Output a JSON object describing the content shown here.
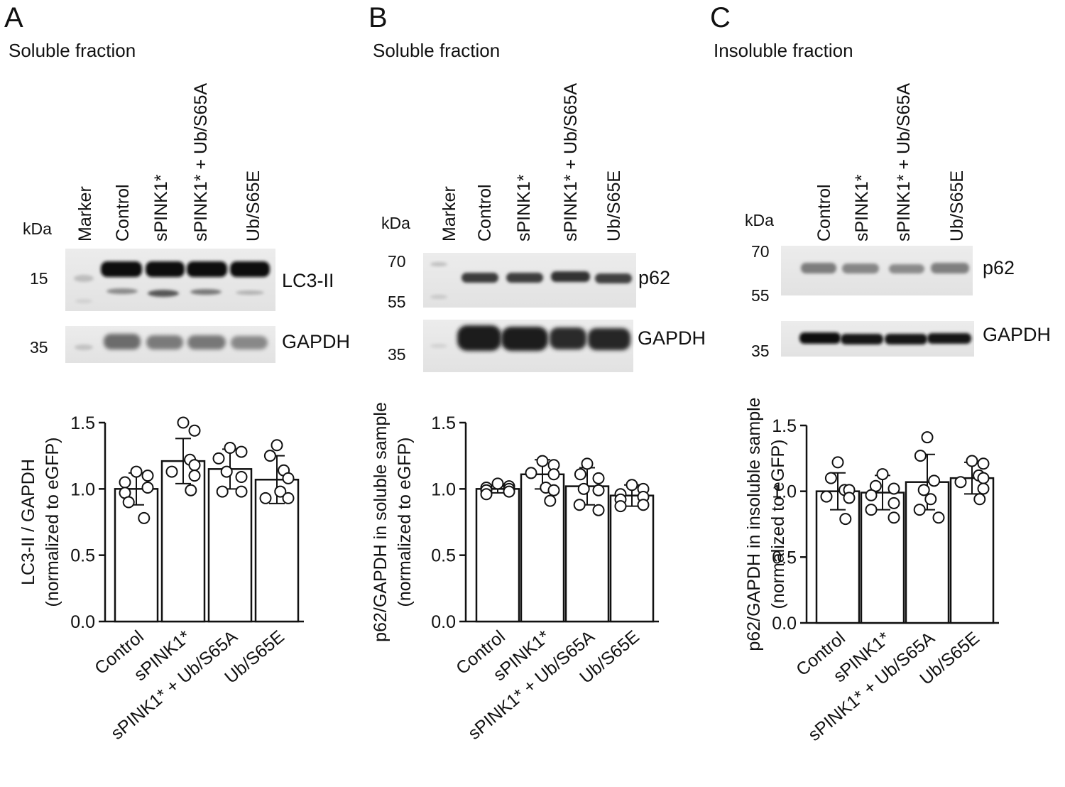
{
  "panels": [
    {
      "letter": "A",
      "fraction": "Soluble fraction",
      "kda": "kDa",
      "lanes": [
        "Marker",
        "Control",
        "sPINK1*",
        "sPINK1* + Ub/S65A",
        "Ub/S65E"
      ],
      "blots": [
        {
          "label": "LC3-II",
          "markers": [
            "15"
          ]
        },
        {
          "label": "GAPDH",
          "markers": [
            "35"
          ]
        }
      ]
    },
    {
      "letter": "B",
      "fraction": "Soluble fraction",
      "kda": "kDa",
      "lanes": [
        "Marker",
        "Control",
        "sPINK1*",
        "sPINK1* + Ub/S65A",
        "Ub/S65E"
      ],
      "blots": [
        {
          "label": "p62",
          "markers": [
            "70",
            "55"
          ]
        },
        {
          "label": "GAPDH",
          "markers": [
            "35"
          ]
        }
      ]
    },
    {
      "letter": "C",
      "fraction": "Insoluble fraction",
      "kda": "kDa",
      "lanes": [
        "Control",
        "sPINK1*",
        "sPINK1* + Ub/S65A",
        "Ub/S65E"
      ],
      "blots": [
        {
          "label": "p62",
          "markers": [
            "70",
            "55"
          ]
        },
        {
          "label": "GAPDH",
          "markers": [
            "35"
          ]
        }
      ]
    }
  ],
  "chart_data": [
    {
      "type": "bar",
      "categories": [
        "Control",
        "sPINK1*",
        "sPINK1* + Ub/S65A",
        "Ub/S65E"
      ],
      "values": [
        1.0,
        1.21,
        1.15,
        1.07
      ],
      "error": [
        0.12,
        0.17,
        0.15,
        0.18
      ],
      "points": [
        [
          1.13,
          1.1,
          1.05,
          1.01,
          0.97,
          0.9,
          0.78
        ],
        [
          1.5,
          1.44,
          1.22,
          1.18,
          1.13,
          1.1,
          0.99
        ],
        [
          1.31,
          1.28,
          1.23,
          1.13,
          1.09,
          0.98,
          0.98
        ],
        [
          1.33,
          1.25,
          1.14,
          1.08,
          0.98,
          0.93,
          0.93
        ]
      ],
      "ylabel_lines": [
        "LC3-II / GAPDH",
        "(normalized to eGFP)"
      ],
      "ylim": [
        0,
        1.5
      ],
      "yticks": [
        "0.0",
        "0.5",
        "1.0",
        "1.5"
      ]
    },
    {
      "type": "bar",
      "categories": [
        "Control",
        "sPINK1*",
        "sPINK1* + Ub/S65A",
        "Ub/S65E"
      ],
      "values": [
        1.0,
        1.11,
        1.02,
        0.95
      ],
      "error": [
        0.03,
        0.11,
        0.14,
        0.08
      ],
      "points": [
        [
          1.04,
          1.02,
          1.01,
          1.0,
          0.99,
          0.98,
          0.96
        ],
        [
          1.21,
          1.18,
          1.12,
          1.11,
          1.01,
          0.99,
          0.91
        ],
        [
          1.19,
          1.11,
          1.08,
          1.0,
          0.99,
          0.88,
          0.84
        ],
        [
          1.03,
          1.0,
          0.96,
          0.94,
          0.92,
          0.88,
          0.87
        ]
      ],
      "ylabel_lines": [
        "p62/GAPDH in soluble sample",
        "(normalized to eGFP)"
      ],
      "ylim": [
        0,
        1.5
      ],
      "yticks": [
        "0.0",
        "0.5",
        "1.0",
        "1.5"
      ]
    },
    {
      "type": "bar",
      "categories": [
        "Control",
        "sPINK1*",
        "sPINK1* + Ub/S65A",
        "Ub/S65E"
      ],
      "values": [
        1.0,
        0.99,
        1.07,
        1.1
      ],
      "error": [
        0.14,
        0.13,
        0.21,
        0.12
      ],
      "points": [
        [
          1.22,
          1.1,
          1.01,
          1.01,
          0.96,
          0.95,
          0.79
        ],
        [
          1.13,
          1.04,
          1.02,
          0.97,
          0.91,
          0.86,
          0.8
        ],
        [
          1.41,
          1.27,
          1.08,
          1.01,
          0.94,
          0.86,
          0.8
        ],
        [
          1.23,
          1.21,
          1.12,
          1.1,
          1.07,
          1.02,
          0.94
        ]
      ],
      "ylabel_lines": [
        "p62/GAPDH in insoluble sample",
        "(normalized to eGFP)"
      ],
      "ylim": [
        0,
        1.5
      ],
      "yticks": [
        "0.0",
        "0.5",
        "1.0",
        "1.5"
      ]
    }
  ]
}
